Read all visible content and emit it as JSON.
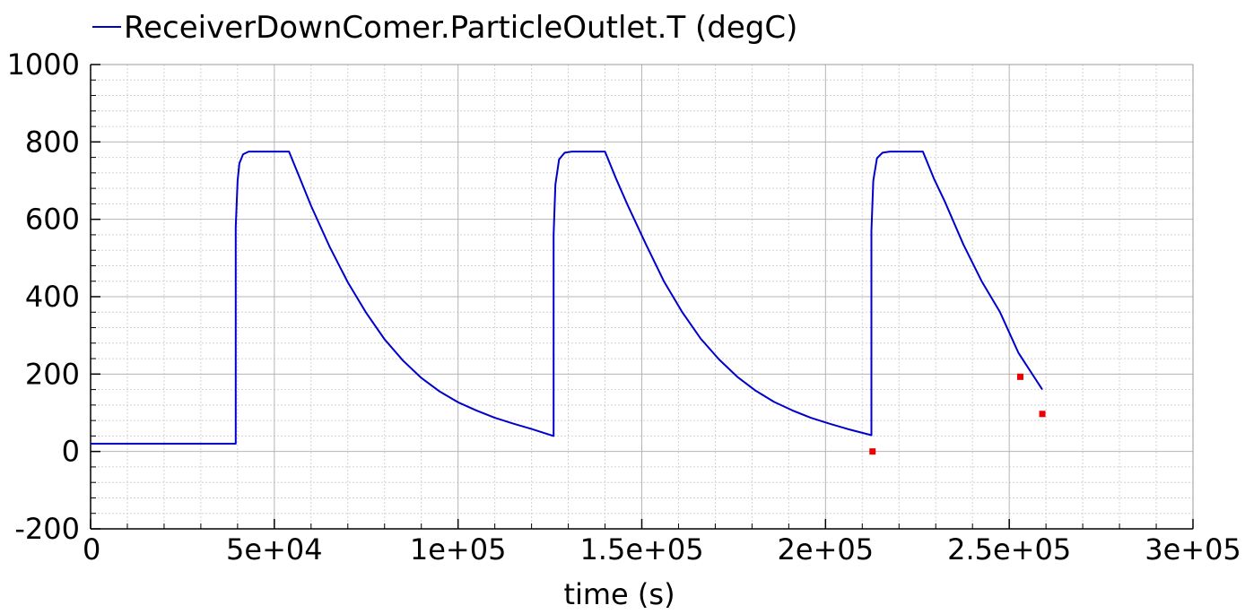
{
  "chart_data": {
    "type": "line",
    "title": "",
    "xlabel": "time (s)",
    "ylabel": "",
    "xlim": [
      0,
      300000
    ],
    "ylim": [
      -200,
      1000
    ],
    "x_ticks": [
      0,
      50000,
      100000,
      150000,
      200000,
      250000,
      300000
    ],
    "x_tick_labels": [
      "0",
      "5e+04",
      "1e+05",
      "1.5e+05",
      "2e+05",
      "2.5e+05",
      "3e+05"
    ],
    "y_ticks": [
      -200,
      0,
      200,
      400,
      600,
      800,
      1000
    ],
    "y_tick_labels": [
      "-200",
      "0",
      "200",
      "400",
      "600",
      "800",
      "1000"
    ],
    "grid": true,
    "legend_placement": "top-left",
    "series": [
      {
        "name": "ReceiverDownComer.ParticleOutlet.T (degC)",
        "color": "#0000cc",
        "x": [
          0,
          39500,
          39500,
          40000,
          40500,
          41500,
          43000,
          45000,
          54000,
          57000,
          60000,
          65000,
          70000,
          75000,
          80000,
          85000,
          90000,
          95000,
          100000,
          105000,
          110000,
          115000,
          120000,
          126000,
          126000,
          126500,
          127500,
          129000,
          131000,
          140000,
          143000,
          146000,
          151000,
          156000,
          161000,
          166000,
          171000,
          176000,
          181000,
          186000,
          191000,
          196000,
          201000,
          206000,
          212500,
          212500,
          213000,
          214000,
          215500,
          217500,
          226500,
          229500,
          232500,
          237500,
          242500,
          247500,
          252500,
          259000
        ],
        "y": [
          20,
          20,
          580,
          700,
          745,
          768,
          775,
          775,
          775,
          705,
          635,
          530,
          437,
          358,
          290,
          235,
          190,
          155,
          127,
          106,
          87,
          72,
          58,
          40,
          560,
          690,
          755,
          772,
          775,
          775,
          705,
          640,
          538,
          440,
          360,
          292,
          238,
          193,
          157,
          128,
          106,
          87,
          72,
          58,
          42,
          570,
          700,
          758,
          772,
          775,
          775,
          705,
          645,
          535,
          440,
          360,
          255,
          160
        ]
      }
    ],
    "markers": [
      {
        "color": "#ee0000",
        "x": 212800,
        "y": 0
      },
      {
        "color": "#ee0000",
        "x": 253000,
        "y": 193
      },
      {
        "color": "#ee0000",
        "x": 259000,
        "y": 97
      }
    ]
  }
}
